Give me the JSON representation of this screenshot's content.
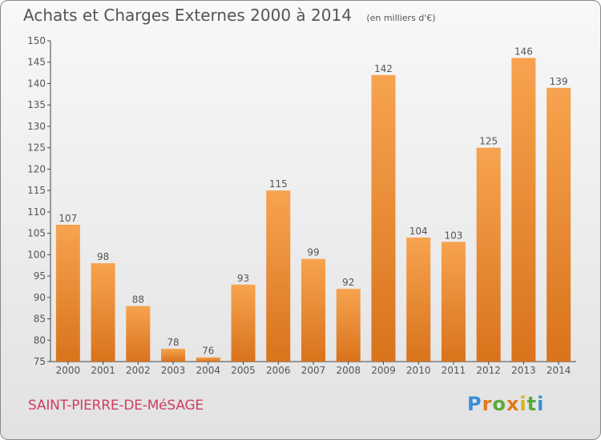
{
  "header": {
    "title": "Achats et Charges Externes 2000 à 2014",
    "unit": "(en milliers d'€)"
  },
  "footer": {
    "commune": "SAINT-PIERRE-DE-MéSAGE",
    "logo": "Proxiti"
  },
  "colors": {
    "bar_top": "#f7a34f",
    "bar_bottom": "#d9731c",
    "text": "#555555",
    "commune": "#d04060"
  },
  "chart_data": {
    "type": "bar",
    "title": "Achats et Charges Externes 2000 à 2014",
    "subtitle": "(en milliers d'€)",
    "categories": [
      "2000",
      "2001",
      "2002",
      "2003",
      "2004",
      "2005",
      "2006",
      "2007",
      "2008",
      "2009",
      "2010",
      "2011",
      "2012",
      "2013",
      "2014"
    ],
    "values": [
      107,
      98,
      88,
      78,
      76,
      93,
      115,
      99,
      92,
      142,
      104,
      103,
      125,
      146,
      139
    ],
    "xlabel": "",
    "ylabel": "",
    "ylim": [
      75,
      150
    ],
    "yticks": [
      75,
      80,
      85,
      90,
      95,
      100,
      105,
      110,
      115,
      120,
      125,
      130,
      135,
      140,
      145,
      150
    ],
    "grid": false,
    "legend": "none"
  }
}
